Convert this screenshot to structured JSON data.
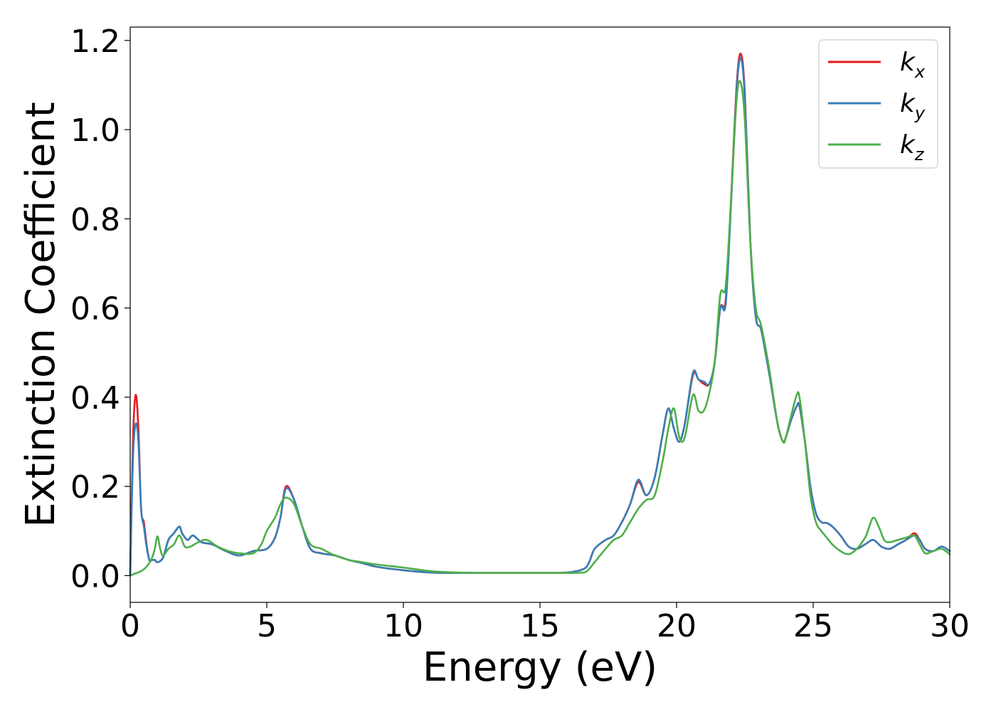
{
  "chart_data": {
    "type": "line",
    "xlabel": "Energy (eV)",
    "ylabel": "Extinction Coefficient",
    "xlim": [
      0,
      30
    ],
    "ylim": [
      -0.06,
      1.23
    ],
    "xticks": [
      0,
      5,
      10,
      15,
      20,
      25,
      30
    ],
    "xtick_labels": [
      "0",
      "5",
      "10",
      "15",
      "20",
      "25",
      "30"
    ],
    "yticks": [
      0.0,
      0.2,
      0.4,
      0.6,
      0.8,
      1.0,
      1.2
    ],
    "ytick_labels": [
      "0.0",
      "0.2",
      "0.4",
      "0.6",
      "0.8",
      "1.0",
      "1.2"
    ],
    "grid": false,
    "legend_position": "top-right",
    "series": [
      {
        "name": "k_x",
        "label_base": "k",
        "label_sub": "x",
        "color": "#e41a1c",
        "x": [
          0,
          0.1,
          0.2,
          0.3,
          0.4,
          0.5,
          0.6,
          0.7,
          0.8,
          0.9,
          1.0,
          1.2,
          1.4,
          1.6,
          1.8,
          1.9,
          2.1,
          2.3,
          2.6,
          3.0,
          3.5,
          4.0,
          4.5,
          5.0,
          5.3,
          5.5,
          5.7,
          6.0,
          6.3,
          6.6,
          7.0,
          7.5,
          8.0,
          8.5,
          9.0,
          10,
          11,
          12,
          13,
          14,
          15,
          16,
          16.6,
          16.8,
          17.0,
          17.4,
          17.7,
          18.0,
          18.3,
          18.6,
          18.9,
          19.2,
          19.5,
          19.7,
          19.9,
          20.1,
          20.3,
          20.6,
          20.8,
          21.0,
          21.2,
          21.4,
          21.6,
          21.8,
          22.0,
          22.2,
          22.35,
          22.5,
          22.7,
          22.9,
          23.1,
          23.4,
          23.7,
          23.9,
          24.0,
          24.2,
          24.4,
          24.5,
          24.7,
          24.9,
          25.1,
          25.3,
          25.5,
          25.7,
          26.0,
          26.3,
          26.6,
          26.9,
          27.2,
          27.5,
          27.8,
          28.1,
          28.4,
          28.7,
          28.9,
          29.1,
          29.4,
          29.7,
          30.0
        ],
        "y": [
          0.0,
          0.3,
          0.405,
          0.33,
          0.15,
          0.12,
          0.07,
          0.035,
          0.035,
          0.035,
          0.03,
          0.04,
          0.08,
          0.095,
          0.11,
          0.095,
          0.08,
          0.09,
          0.075,
          0.07,
          0.055,
          0.045,
          0.055,
          0.06,
          0.085,
          0.13,
          0.2,
          0.17,
          0.11,
          0.06,
          0.05,
          0.045,
          0.035,
          0.028,
          0.02,
          0.012,
          0.007,
          0.006,
          0.006,
          0.006,
          0.006,
          0.007,
          0.015,
          0.03,
          0.06,
          0.08,
          0.09,
          0.12,
          0.16,
          0.21,
          0.18,
          0.22,
          0.32,
          0.375,
          0.33,
          0.3,
          0.34,
          0.45,
          0.44,
          0.43,
          0.43,
          0.48,
          0.6,
          0.62,
          0.85,
          1.1,
          1.17,
          1.08,
          0.75,
          0.58,
          0.55,
          0.45,
          0.34,
          0.3,
          0.31,
          0.35,
          0.38,
          0.38,
          0.3,
          0.2,
          0.14,
          0.12,
          0.118,
          0.11,
          0.09,
          0.065,
          0.06,
          0.07,
          0.08,
          0.065,
          0.06,
          0.07,
          0.08,
          0.095,
          0.08,
          0.06,
          0.055,
          0.065,
          0.055
        ]
      },
      {
        "name": "k_y",
        "label_base": "k",
        "label_sub": "y",
        "color": "#377eb8",
        "x": [
          0,
          0.1,
          0.2,
          0.3,
          0.4,
          0.5,
          0.6,
          0.7,
          0.8,
          0.9,
          1.0,
          1.2,
          1.4,
          1.6,
          1.8,
          1.9,
          2.1,
          2.3,
          2.6,
          3.0,
          3.5,
          4.0,
          4.5,
          5.0,
          5.3,
          5.5,
          5.7,
          6.0,
          6.3,
          6.6,
          7.0,
          7.5,
          8.0,
          8.5,
          9.0,
          10,
          11,
          12,
          13,
          14,
          15,
          16,
          16.6,
          16.8,
          17.0,
          17.4,
          17.7,
          18.0,
          18.3,
          18.6,
          18.9,
          19.2,
          19.5,
          19.7,
          19.9,
          20.1,
          20.3,
          20.6,
          20.8,
          21.0,
          21.2,
          21.4,
          21.6,
          21.8,
          22.0,
          22.2,
          22.35,
          22.5,
          22.7,
          22.9,
          23.1,
          23.4,
          23.7,
          23.9,
          24.0,
          24.2,
          24.4,
          24.5,
          24.7,
          24.9,
          25.1,
          25.3,
          25.5,
          25.7,
          26.0,
          26.3,
          26.6,
          26.9,
          27.2,
          27.5,
          27.8,
          28.1,
          28.4,
          28.7,
          28.9,
          29.1,
          29.4,
          29.7,
          30.0
        ],
        "y": [
          0.0,
          0.26,
          0.34,
          0.3,
          0.15,
          0.11,
          0.065,
          0.035,
          0.035,
          0.035,
          0.03,
          0.04,
          0.08,
          0.095,
          0.11,
          0.095,
          0.08,
          0.09,
          0.075,
          0.07,
          0.055,
          0.045,
          0.055,
          0.06,
          0.085,
          0.13,
          0.195,
          0.17,
          0.11,
          0.06,
          0.05,
          0.045,
          0.035,
          0.028,
          0.02,
          0.012,
          0.007,
          0.006,
          0.006,
          0.006,
          0.006,
          0.007,
          0.015,
          0.03,
          0.06,
          0.08,
          0.09,
          0.12,
          0.16,
          0.215,
          0.18,
          0.22,
          0.32,
          0.375,
          0.33,
          0.3,
          0.34,
          0.455,
          0.44,
          0.435,
          0.43,
          0.48,
          0.6,
          0.61,
          0.84,
          1.09,
          1.16,
          1.07,
          0.75,
          0.58,
          0.55,
          0.45,
          0.34,
          0.3,
          0.31,
          0.35,
          0.38,
          0.38,
          0.3,
          0.2,
          0.14,
          0.12,
          0.118,
          0.11,
          0.09,
          0.065,
          0.06,
          0.07,
          0.08,
          0.065,
          0.06,
          0.07,
          0.08,
          0.09,
          0.08,
          0.06,
          0.055,
          0.065,
          0.055
        ]
      },
      {
        "name": "k_z",
        "label_base": "k",
        "label_sub": "z",
        "color": "#4daf4a",
        "x": [
          0,
          0.2,
          0.4,
          0.6,
          0.8,
          0.9,
          1.0,
          1.1,
          1.2,
          1.4,
          1.6,
          1.8,
          2.0,
          2.2,
          2.5,
          2.8,
          3.2,
          3.6,
          4.0,
          4.5,
          4.8,
          5.0,
          5.3,
          5.5,
          5.7,
          6.0,
          6.3,
          6.6,
          7.0,
          7.5,
          8.0,
          8.5,
          9.0,
          10,
          11,
          12,
          13,
          14,
          15,
          16,
          16.6,
          16.8,
          17.0,
          17.4,
          17.7,
          18.0,
          18.3,
          18.6,
          18.9,
          19.2,
          19.5,
          19.7,
          19.9,
          20.1,
          20.3,
          20.6,
          20.8,
          21.0,
          21.2,
          21.4,
          21.6,
          21.8,
          22.0,
          22.2,
          22.35,
          22.5,
          22.7,
          22.9,
          23.1,
          23.4,
          23.7,
          23.9,
          24.0,
          24.2,
          24.4,
          24.5,
          24.7,
          24.9,
          25.1,
          25.3,
          25.5,
          25.7,
          26.0,
          26.3,
          26.6,
          26.9,
          27.0,
          27.2,
          27.4,
          27.6,
          27.8,
          28.1,
          28.4,
          28.7,
          28.9,
          29.1,
          29.4,
          29.7,
          30.0
        ],
        "y": [
          0.0,
          0.005,
          0.01,
          0.02,
          0.04,
          0.06,
          0.088,
          0.06,
          0.045,
          0.06,
          0.07,
          0.09,
          0.065,
          0.065,
          0.075,
          0.08,
          0.065,
          0.055,
          0.05,
          0.05,
          0.07,
          0.1,
          0.13,
          0.16,
          0.175,
          0.16,
          0.11,
          0.07,
          0.06,
          0.045,
          0.035,
          0.03,
          0.025,
          0.018,
          0.01,
          0.007,
          0.006,
          0.006,
          0.006,
          0.006,
          0.007,
          0.015,
          0.03,
          0.06,
          0.08,
          0.09,
          0.12,
          0.15,
          0.17,
          0.18,
          0.26,
          0.33,
          0.375,
          0.31,
          0.31,
          0.405,
          0.37,
          0.37,
          0.41,
          0.48,
          0.63,
          0.65,
          0.85,
          1.07,
          1.105,
          1.02,
          0.75,
          0.6,
          0.56,
          0.46,
          0.34,
          0.3,
          0.31,
          0.36,
          0.405,
          0.4,
          0.3,
          0.18,
          0.12,
          0.1,
          0.085,
          0.07,
          0.055,
          0.048,
          0.06,
          0.085,
          0.1,
          0.13,
          0.11,
          0.08,
          0.075,
          0.08,
          0.085,
          0.09,
          0.07,
          0.05,
          0.055,
          0.06,
          0.048
        ]
      }
    ]
  }
}
